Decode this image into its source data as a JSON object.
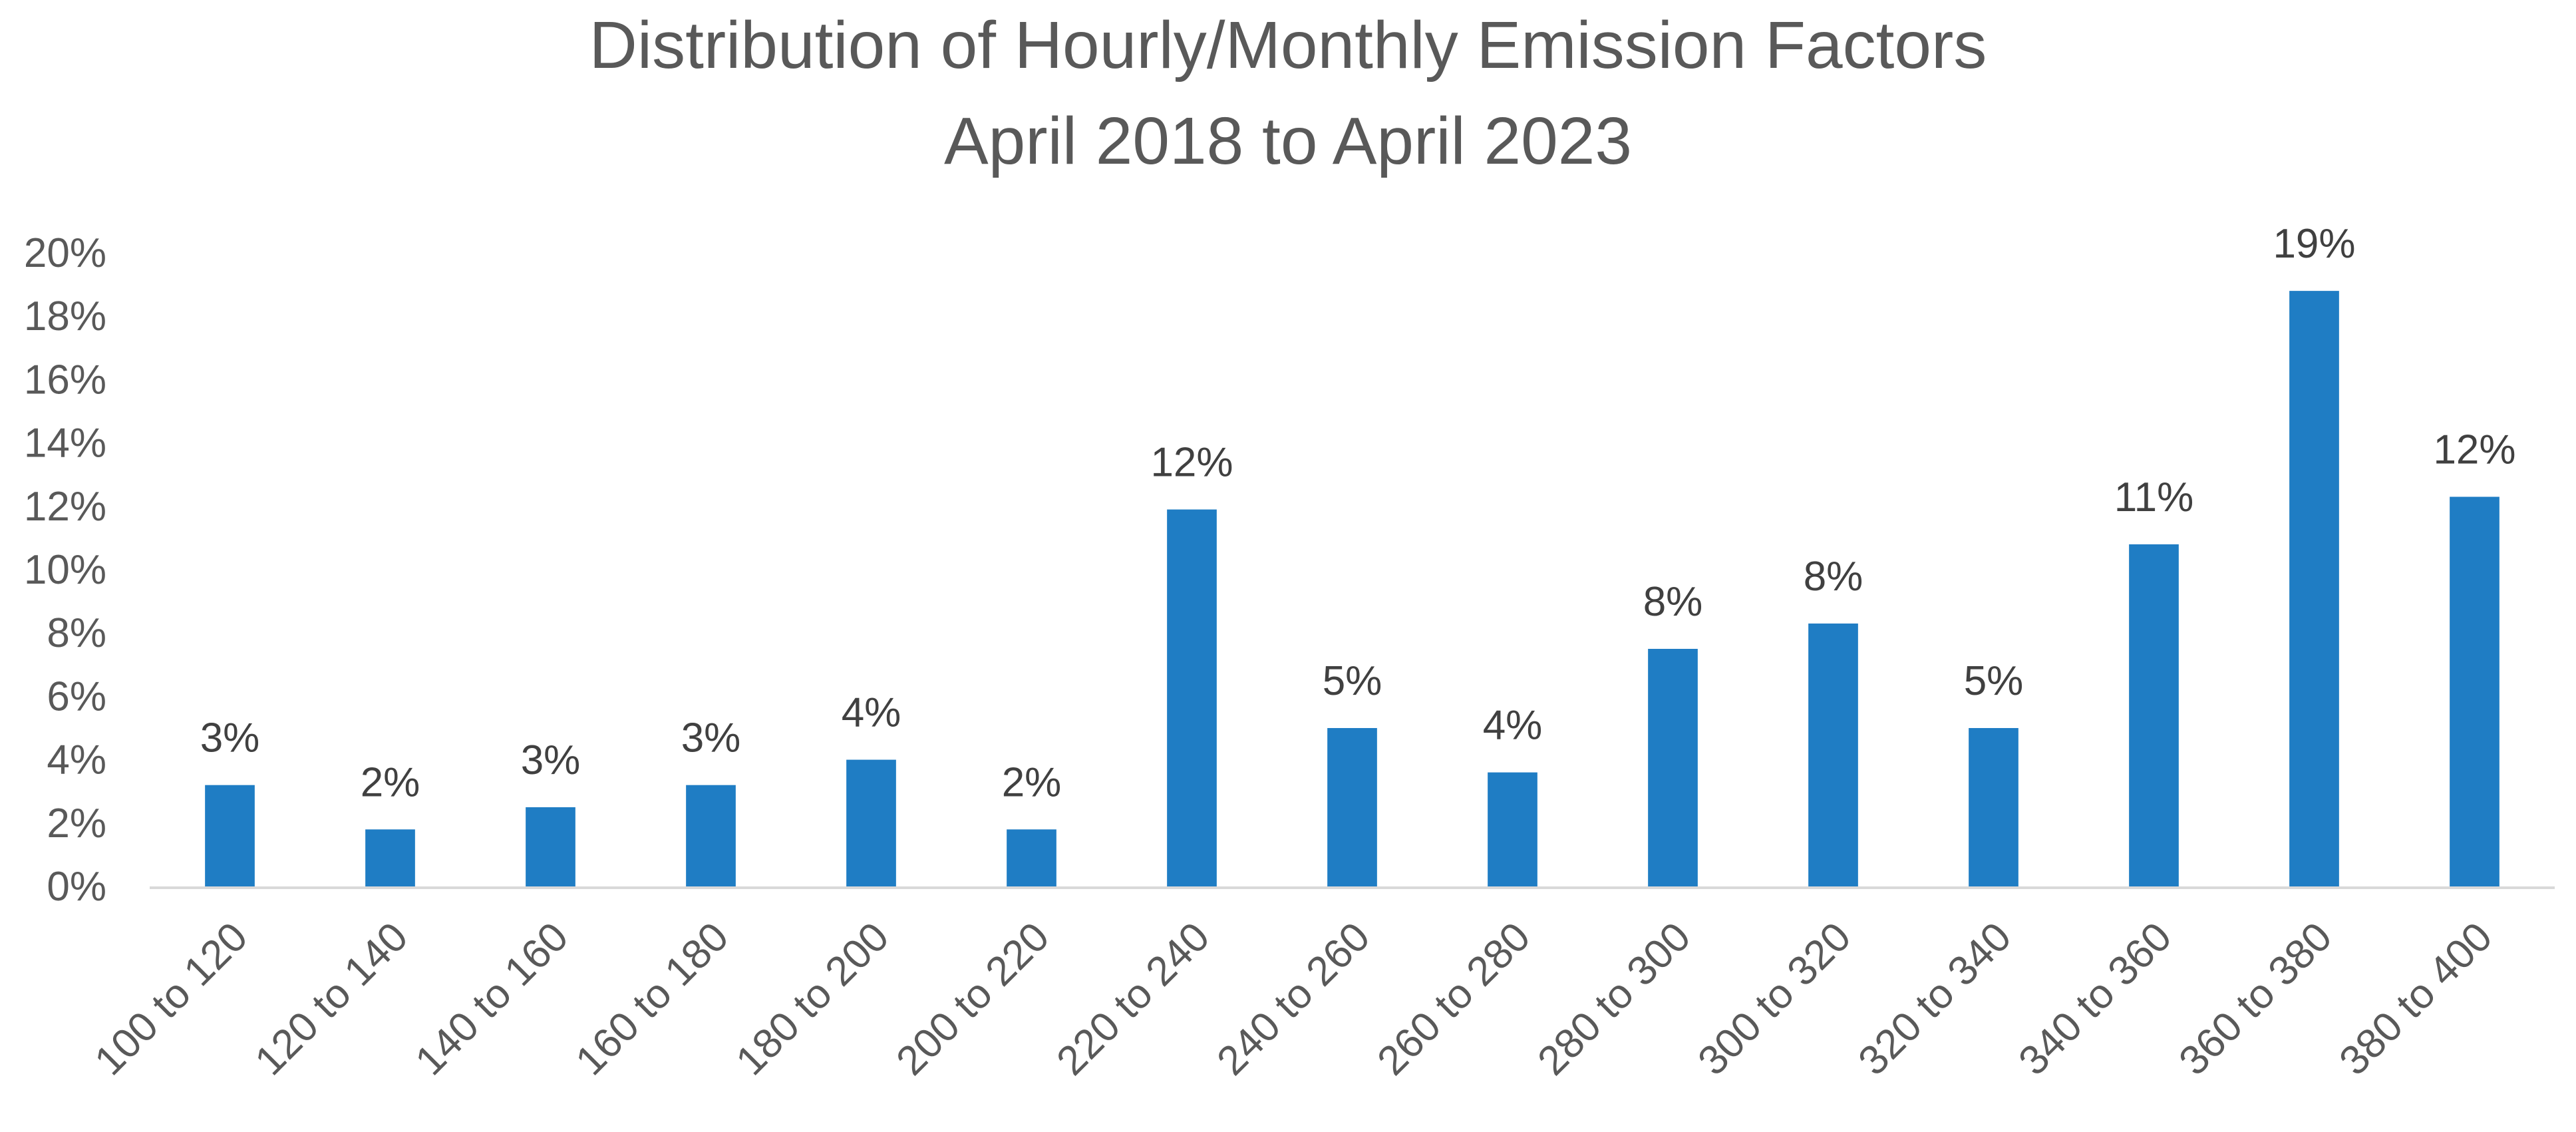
{
  "chart_data": {
    "type": "bar",
    "title": "Distribution of Hourly/Monthly Emission Factors",
    "subtitle": "April 2018 to April 2023",
    "xlabel": "",
    "ylabel": "",
    "categories": [
      "100 to 120",
      "120 to 140",
      "140 to 160",
      "160 to 180",
      "180 to 200",
      "200 to 220",
      "220 to 240",
      "240 to 260",
      "260 to 280",
      "280 to 300",
      "300 to 320",
      "320 to 340",
      "340 to 360",
      "360 to 380",
      "380 to 400"
    ],
    "values": [
      3.2,
      1.8,
      2.5,
      3.2,
      4.0,
      1.8,
      11.9,
      5.0,
      3.6,
      7.5,
      8.3,
      5.0,
      10.8,
      18.8,
      12.3
    ],
    "data_labels": [
      "3%",
      "2%",
      "3%",
      "3%",
      "4%",
      "2%",
      "12%",
      "5%",
      "4%",
      "8%",
      "8%",
      "5%",
      "11%",
      "19%",
      "12%"
    ],
    "value_unit": "%",
    "ylim": [
      0,
      20
    ],
    "yticks": [
      "0%",
      "2%",
      "4%",
      "6%",
      "8%",
      "10%",
      "12%",
      "14%",
      "16%",
      "18%",
      "20%"
    ],
    "grid": false,
    "legend": "none",
    "bar_color": "#1f7dc4",
    "axis_color": "#d9d9d9",
    "text_color": "#595959"
  }
}
